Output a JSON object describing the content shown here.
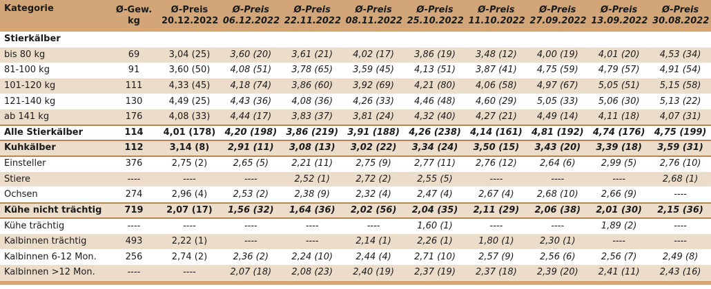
{
  "header": {
    "kategorie": "Kategorie",
    "gewicht": [
      "Ø-Gew.",
      "kg"
    ],
    "preise": [
      {
        "label": "Ø-Preis",
        "date": "20.12.2022",
        "italic": false
      },
      {
        "label": "Ø-Preis",
        "date": "06.12.2022",
        "italic": true
      },
      {
        "label": "Ø-Preis",
        "date": "22.11.2022",
        "italic": true
      },
      {
        "label": "Ø-Preis",
        "date": "08.11.2022",
        "italic": true
      },
      {
        "label": "Ø-Preis",
        "date": "25.10.2022",
        "italic": true
      },
      {
        "label": "Ø-Preis",
        "date": "11.10.2022",
        "italic": true
      },
      {
        "label": "Ø-Preis",
        "date": "27.09.2022",
        "italic": true
      },
      {
        "label": "Ø-Preis",
        "date": "13.09.2022",
        "italic": true
      },
      {
        "label": "Ø-Preis",
        "date": "30.08.2022",
        "italic": true
      }
    ]
  },
  "rows": [
    {
      "type": "section",
      "bg": "plain",
      "label": "Stierkälber",
      "gew": "",
      "values": [
        "",
        "",
        "",
        "",
        "",
        "",
        "",
        "",
        ""
      ]
    },
    {
      "type": "data",
      "bg": "alt",
      "label": "bis 80 kg",
      "gew": "69",
      "values": [
        "3,04 (25)",
        "3,60 (20)",
        "3,61 (21)",
        "4,02 (17)",
        "3,86 (19)",
        "3,48 (12)",
        "4,00 (19)",
        "4,01 (20)",
        "4,53 (34)"
      ]
    },
    {
      "type": "data",
      "bg": "plain",
      "label": "81-100 kg",
      "gew": "91",
      "values": [
        "3,60 (50)",
        "4,08 (51)",
        "3,78 (65)",
        "3,59 (45)",
        "4,13 (51)",
        "3,87 (41)",
        "4,75 (59)",
        "4,79 (57)",
        "4,91 (54)"
      ]
    },
    {
      "type": "data",
      "bg": "alt",
      "label": "101-120 kg",
      "gew": "111",
      "values": [
        "4,33 (45)",
        "4,18 (74)",
        "3,86 (60)",
        "3,92 (69)",
        "4,21 (80)",
        "4,06 (58)",
        "4,97 (67)",
        "5,05 (51)",
        "5,15 (58)"
      ]
    },
    {
      "type": "data",
      "bg": "plain",
      "label": "121-140 kg",
      "gew": "130",
      "values": [
        "4,49 (25)",
        "4,43 (36)",
        "4,08 (36)",
        "4,26 (33)",
        "4,46 (48)",
        "4,60 (29)",
        "5,05 (33)",
        "5,06 (30)",
        "5,13 (22)"
      ]
    },
    {
      "type": "data",
      "bg": "alt",
      "label": "ab 141 kg",
      "gew": "176",
      "values": [
        "4,08 (33)",
        "4,44 (17)",
        "3,83 (37)",
        "3,81 (24)",
        "4,32 (40)",
        "4,27 (21)",
        "4,49 (14)",
        "4,11 (18)",
        "4,07 (31)"
      ]
    },
    {
      "type": "total",
      "bg": "plain",
      "label": "Alle Stierkälber",
      "gew": "114",
      "values": [
        "4,01 (178)",
        "4,20 (198)",
        "3,86 (219)",
        "3,91 (188)",
        "4,26 (238)",
        "4,14 (161)",
        "4,81 (192)",
        "4,74 (176)",
        "4,75 (199)"
      ]
    },
    {
      "type": "total",
      "bg": "alt",
      "label": "Kuhkälber",
      "gew": "112",
      "values": [
        "3,14 (8)",
        "2,91 (11)",
        "3,08 (13)",
        "3,02 (22)",
        "3,34 (24)",
        "3,50 (15)",
        "3,43 (20)",
        "3,39 (18)",
        "3,59 (31)"
      ]
    },
    {
      "type": "data",
      "bg": "plain",
      "label": "Einsteller",
      "gew": "376",
      "values": [
        "2,75 (2)",
        "2,65 (5)",
        "2,21 (11)",
        "2,75 (9)",
        "2,77 (11)",
        "2,76 (12)",
        "2,64 (6)",
        "2,99 (5)",
        "2,76 (10)"
      ]
    },
    {
      "type": "data",
      "bg": "alt",
      "label": "Stiere",
      "gew": "----",
      "values": [
        "----",
        "----",
        "2,52 (1)",
        "2,72 (2)",
        "2,55 (5)",
        "----",
        "----",
        "----",
        "2,68 (1)"
      ]
    },
    {
      "type": "data",
      "bg": "plain",
      "label": "Ochsen",
      "gew": "274",
      "values": [
        "2,96 (4)",
        "2,53 (2)",
        "2,38 (9)",
        "2,32 (4)",
        "2,47 (4)",
        "2,67 (4)",
        "2,68 (10)",
        "2,66 (9)",
        "----"
      ]
    },
    {
      "type": "total",
      "bg": "alt",
      "label": "Kühe nicht trächtig",
      "gew": "719",
      "values": [
        "2,07 (17)",
        "1,56 (32)",
        "1,64 (36)",
        "2,02 (56)",
        "2,04 (35)",
        "2,11 (29)",
        "2,06 (38)",
        "2,01 (30)",
        "2,15 (36)"
      ]
    },
    {
      "type": "data",
      "bg": "plain",
      "label": "Kühe trächtig",
      "gew": "----",
      "values": [
        "----",
        "----",
        "----",
        "----",
        "1,60 (1)",
        "----",
        "----",
        "1,89 (2)",
        "----"
      ]
    },
    {
      "type": "data",
      "bg": "alt",
      "label": "Kalbinnen trächtig",
      "gew": "493",
      "values": [
        "2,22 (1)",
        "----",
        "----",
        "2,14 (1)",
        "2,26 (1)",
        "1,80 (1)",
        "2,30 (1)",
        "----",
        "----"
      ]
    },
    {
      "type": "data",
      "bg": "plain",
      "label": "Kalbinnen 6-12 Mon.",
      "gew": "256",
      "values": [
        "2,74 (2)",
        "2,36 (2)",
        "2,24 (10)",
        "2,44 (4)",
        "2,71 (10)",
        "2,57 (9)",
        "2,56 (6)",
        "2,56 (7)",
        "2,49 (8)"
      ]
    },
    {
      "type": "data",
      "bg": "alt",
      "label": "Kalbinnen >12 Mon.",
      "gew": "----",
      "values": [
        "----",
        "2,07 (18)",
        "2,08 (23)",
        "2,40 (19)",
        "2,37 (19)",
        "2,37 (18)",
        "2,39 (20)",
        "2,41 (11)",
        "2,43 (16)"
      ]
    }
  ]
}
